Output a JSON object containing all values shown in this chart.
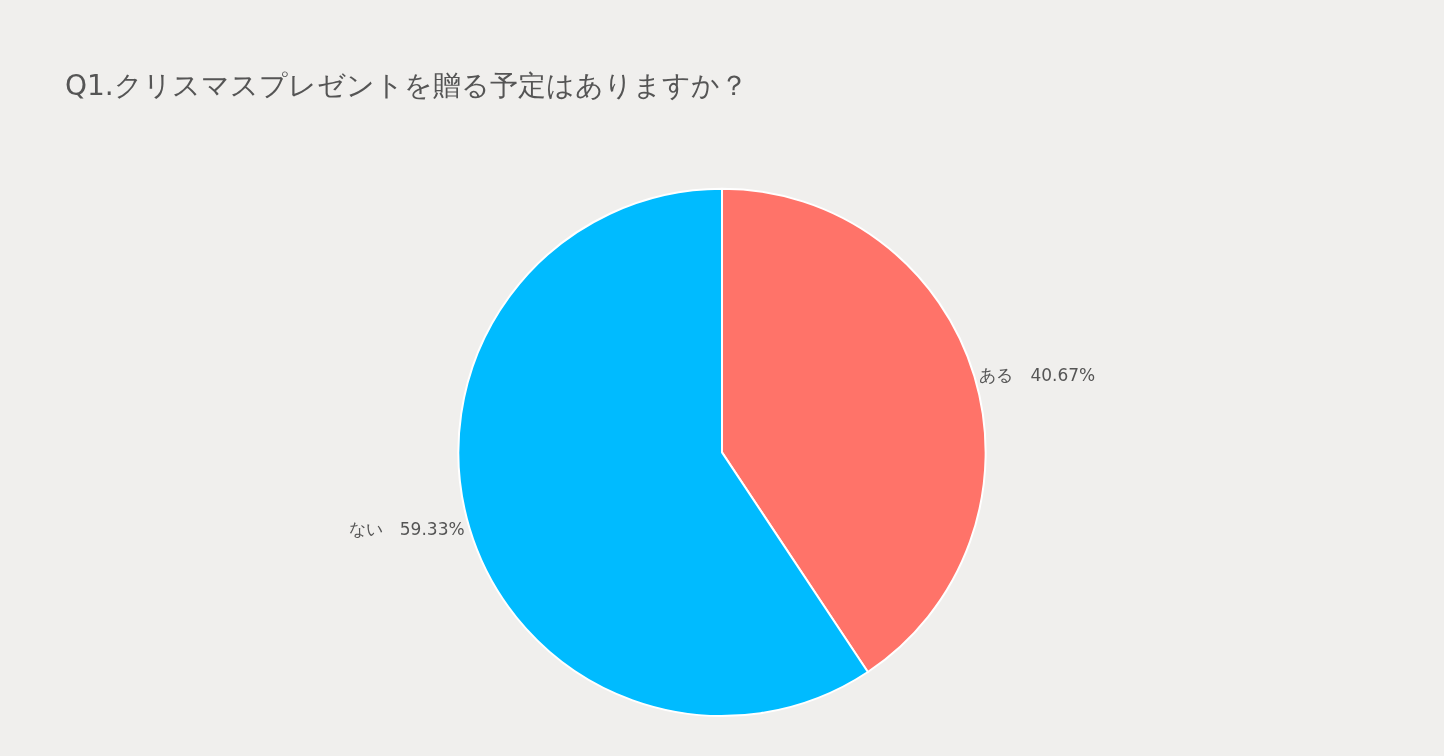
{
  "chart_data": {
    "type": "pie",
    "title": "Q1.クリスマスプレゼントを贈る予定はありますか？",
    "categories": [
      "ある",
      "ない"
    ],
    "values": [
      40.67,
      59.33
    ],
    "value_labels": [
      "40.67%",
      "59.33%"
    ],
    "colors": [
      "#ff7369",
      "#00bbff"
    ],
    "legend": false
  }
}
